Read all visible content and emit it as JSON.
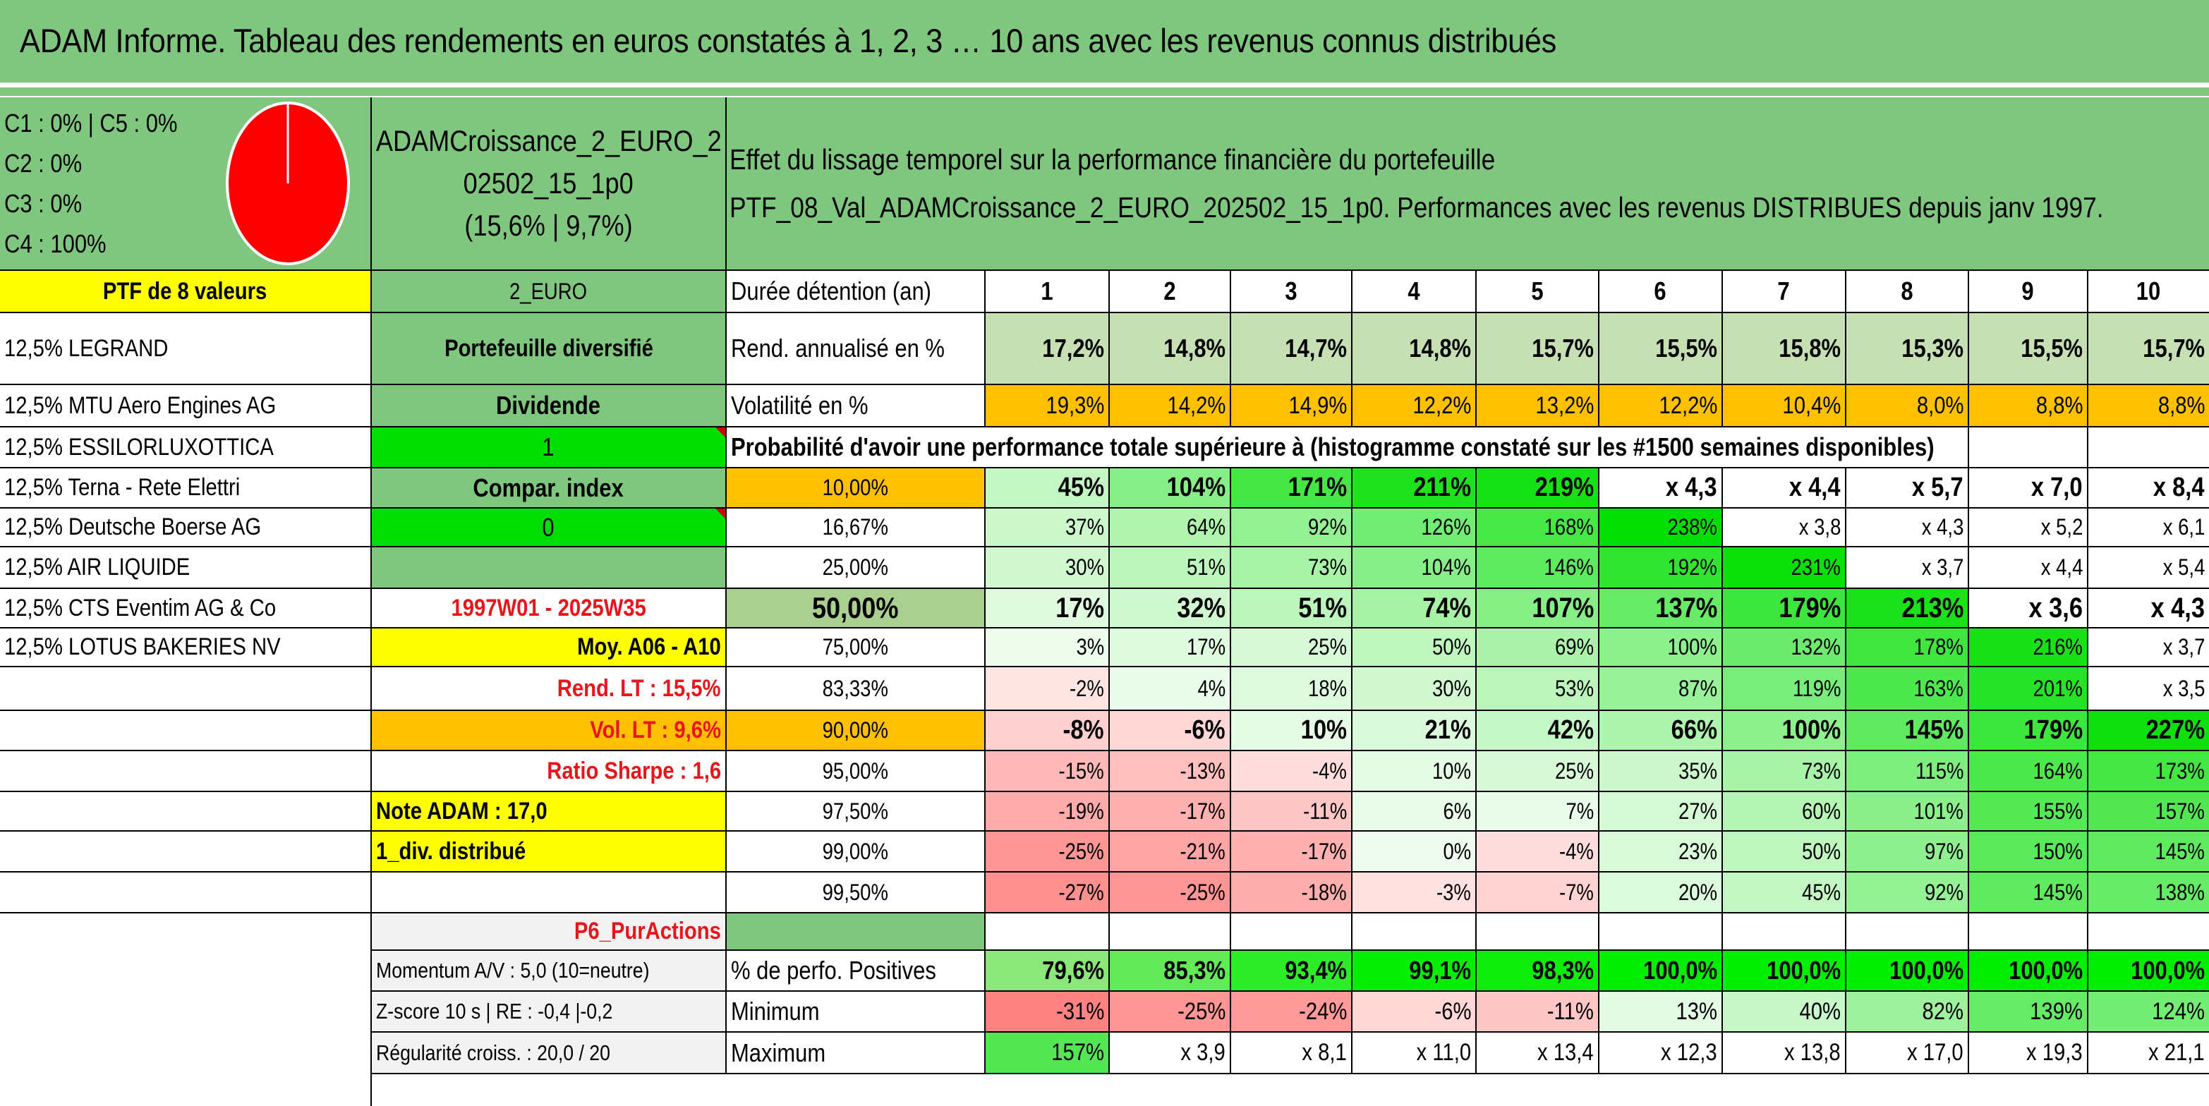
{
  "title": "ADAM Informe. Tableau des rendements en euros constatés à 1, 2, 3 … 10 ans avec les revenus connus distribués",
  "header_block": {
    "classes": [
      "C1 : 0% | C5 : 0%",
      "C2 : 0%",
      "C3 : 0%",
      "C4 : 100%"
    ],
    "portfolio_name_line1": "ADAMCroissance_2_EURO_2",
    "portfolio_name_line2": "02502_15_1p0",
    "portfolio_stats": "(15,6% | 9,7%)",
    "effect_title": "Effet du lissage temporel sur la performance financière du portefeuille",
    "effect_subtitle": "PTF_08_Val_ADAMCroissance_2_EURO_202502_15_1p0. Performances avec les revenus DISTRIBUES depuis janv 1997."
  },
  "pie_chart": {
    "slice_color": "#ff0000",
    "border_color": "#ffffff"
  },
  "colors": {
    "header_green": "#7fc77f",
    "yellow": "#ffff00",
    "orange": "#ffc000",
    "bright_green": "#00dd00",
    "red_text": "#e8161b"
  },
  "left_column": {
    "ptf_label": "PTF de 8 valeurs",
    "holdings": [
      "12,5% LEGRAND",
      "12,5% MTU Aero Engines AG",
      "12,5% ESSILORLUXOTTICA",
      "12,5% Terna - Rete Elettri",
      "12,5% Deutsche Boerse AG",
      "12,5% AIR LIQUIDE",
      "12,5% CTS Eventim AG & Co",
      "12,5% LOTUS BAKERIES NV"
    ]
  },
  "mid_column": {
    "currency": "2_EURO",
    "type": "Portefeuille diversifié",
    "dividend_label": "Dividende",
    "dividend_value": "1",
    "compar_label": "Compar. index",
    "compar_value": "0",
    "period": "1997W01 - 2025W35",
    "moy": "Moy. A06 - A10",
    "rend_lt": "Rend. LT : 15,5%",
    "vol_lt": "Vol. LT : 9,6%",
    "sharpe": "Ratio Sharpe : 1,6",
    "note": "Note ADAM : 17,0",
    "div": "1_div. distribué",
    "p6": "P6_PurActions",
    "momentum": "Momentum A/V : 5,0 (10=neutre)",
    "zscore": "Z-score 10 s | RE : -0,4 |-0,2",
    "regularite": "Régularité croiss. : 20,0 / 20"
  },
  "table": {
    "duration_label": "Durée détention (an)",
    "years": [
      "1",
      "2",
      "3",
      "4",
      "5",
      "6",
      "7",
      "8",
      "9",
      "10"
    ],
    "rend_label": "Rend. annualisé en %",
    "rend": [
      "17,2%",
      "14,8%",
      "14,7%",
      "14,8%",
      "15,7%",
      "15,5%",
      "15,8%",
      "15,3%",
      "15,5%",
      "15,7%"
    ],
    "vol_label": "Volatilité en %",
    "vol": [
      "19,3%",
      "14,2%",
      "14,9%",
      "12,2%",
      "13,2%",
      "12,2%",
      "10,4%",
      "8,0%",
      "8,8%",
      "8,8%"
    ],
    "prob_title": "Probabilité d'avoir une performance totale supérieure à (histogramme constaté sur les #1500 semaines disponibles)",
    "prob_rows": [
      {
        "p": "10,00%",
        "v": [
          "45%",
          "104%",
          "171%",
          "211%",
          "219%",
          "x 4,3",
          "x 4,4",
          "x 5,7",
          "x 7,0",
          "x 8,4"
        ]
      },
      {
        "p": "16,67%",
        "v": [
          "37%",
          "64%",
          "92%",
          "126%",
          "168%",
          "238%",
          "x 3,8",
          "x 4,3",
          "x 5,2",
          "x 6,1"
        ]
      },
      {
        "p": "25,00%",
        "v": [
          "30%",
          "51%",
          "73%",
          "104%",
          "146%",
          "192%",
          "231%",
          "x 3,7",
          "x 4,4",
          "x 5,4"
        ]
      },
      {
        "p": "50,00%",
        "v": [
          "17%",
          "32%",
          "51%",
          "74%",
          "107%",
          "137%",
          "179%",
          "213%",
          "x 3,6",
          "x 4,3"
        ]
      },
      {
        "p": "75,00%",
        "v": [
          "3%",
          "17%",
          "25%",
          "50%",
          "69%",
          "100%",
          "132%",
          "178%",
          "216%",
          "x 3,7"
        ]
      },
      {
        "p": "83,33%",
        "v": [
          "-2%",
          "4%",
          "18%",
          "30%",
          "53%",
          "87%",
          "119%",
          "163%",
          "201%",
          "x 3,5"
        ]
      },
      {
        "p": "90,00%",
        "v": [
          "-8%",
          "-6%",
          "10%",
          "21%",
          "42%",
          "66%",
          "100%",
          "145%",
          "179%",
          "227%"
        ]
      },
      {
        "p": "95,00%",
        "v": [
          "-15%",
          "-13%",
          "-4%",
          "10%",
          "25%",
          "35%",
          "73%",
          "115%",
          "164%",
          "173%"
        ]
      },
      {
        "p": "97,50%",
        "v": [
          "-19%",
          "-17%",
          "-11%",
          "6%",
          "7%",
          "27%",
          "60%",
          "101%",
          "155%",
          "157%"
        ]
      },
      {
        "p": "99,00%",
        "v": [
          "-25%",
          "-21%",
          "-17%",
          "0%",
          "-4%",
          "23%",
          "50%",
          "97%",
          "150%",
          "145%"
        ]
      },
      {
        "p": "99,50%",
        "v": [
          "-27%",
          "-25%",
          "-18%",
          "-3%",
          "-7%",
          "20%",
          "45%",
          "92%",
          "145%",
          "138%"
        ]
      }
    ],
    "pos_label": "% de perfo. Positives",
    "pos": [
      "79,6%",
      "85,3%",
      "93,4%",
      "99,1%",
      "98,3%",
      "100,0%",
      "100,0%",
      "100,0%",
      "100,0%",
      "100,0%"
    ],
    "min_label": "Minimum",
    "min": [
      "-31%",
      "-25%",
      "-24%",
      "-6%",
      "-11%",
      "13%",
      "40%",
      "82%",
      "139%",
      "124%"
    ],
    "max_label": "Maximum",
    "max": [
      "157%",
      "x 3,9",
      "x 8,1",
      "x 11,0",
      "x 13,4",
      "x 12,3",
      "x 13,8",
      "x 17,0",
      "x 19,3",
      "x 21,1"
    ]
  }
}
